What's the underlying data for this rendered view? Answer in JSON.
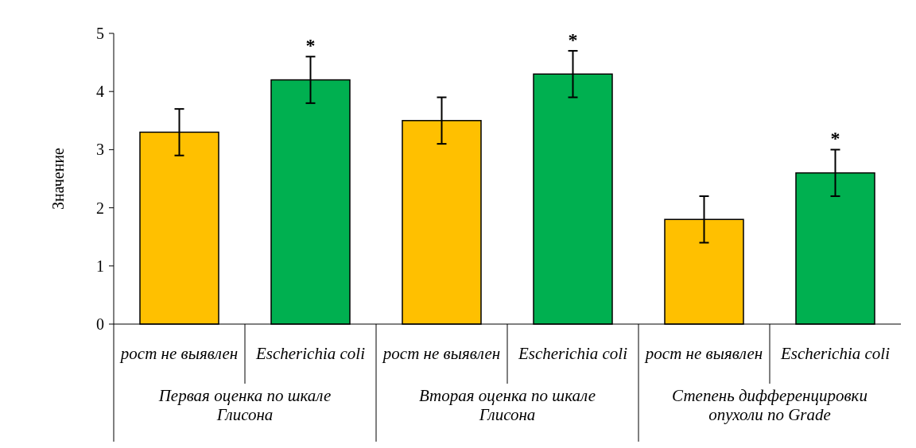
{
  "chart_data": {
    "type": "bar",
    "ylabel": "Значение",
    "categories": [
      "рост не выявлен",
      "Escherichia coli",
      "рост не выявлен",
      "Escherichia coli",
      "рост не выявлен",
      "Escherichia coli"
    ],
    "values": [
      3.3,
      4.2,
      3.5,
      4.3,
      1.8,
      2.6
    ],
    "colors": [
      "#ffc000",
      "#00b050",
      "#ffc000",
      "#00b050",
      "#ffc000",
      "#00b050"
    ],
    "errors": [
      0.4,
      0.4,
      0.4,
      0.4,
      0.4,
      0.4
    ],
    "value_labels": [
      null,
      "*",
      null,
      "*",
      null,
      "*"
    ],
    "annotations": [
      "Первая оценка по шкале Глисона",
      "Вторая оценка по шкале Глисона",
      "Степень дифференцировки опухоли по Grade"
    ],
    "ylim": [
      0,
      5
    ],
    "yticks": [
      0,
      1,
      2,
      3,
      4,
      5
    ],
    "grid": false
  }
}
